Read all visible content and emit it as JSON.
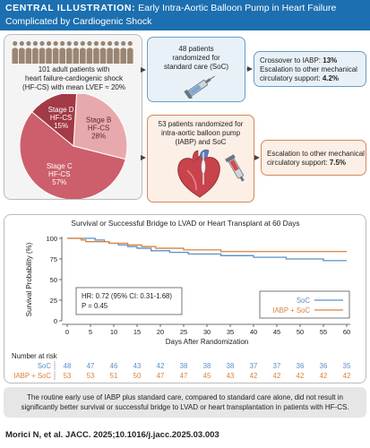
{
  "header": {
    "label": "CENTRAL ILLUSTRATION:",
    "title_line1": "Early Intra-Aortic Balloon Pump in Heart Failure",
    "title_line2": "Complicated by Cardiogenic Shock"
  },
  "population": {
    "line1": "101 adult patients with",
    "line2": "heart failure-cardiogenic shock",
    "line3": "(HF-CS) with mean LVEF ≈ 20%",
    "icon_count": 18
  },
  "pie": {
    "slices": [
      {
        "name": "Stage B",
        "sub": "HF-CS",
        "pct_label": "28%",
        "value": 28,
        "color": "#e8a9ad"
      },
      {
        "name": "Stage C",
        "sub": "HF-CS",
        "pct_label": "57%",
        "value": 57,
        "color": "#cc5f6b"
      },
      {
        "name": "Stage D",
        "sub": "HF-CS",
        "pct_label": "15%",
        "value": 15,
        "color": "#a23a47"
      }
    ]
  },
  "soc_arm": {
    "line1": "48 patients",
    "line2": "randomized for",
    "line3": "standard care (SoC)"
  },
  "soc_outcome": {
    "line1_prefix": "Crossover to IABP: ",
    "line1_value": "13%",
    "line2_prefix": "Escalation to other mechanical",
    "line3_prefix": "circulatory support: ",
    "line3_value": "4.2%"
  },
  "iabp_arm": {
    "line1": "53 patients randomized for",
    "line2": "intra-aortic balloon pump",
    "line3": "(IABP) and SoC"
  },
  "iabp_outcome": {
    "line1": "Escalation to other mechanical",
    "line2_prefix": "circulatory support: ",
    "line2_value": "7.5%"
  },
  "chart_data": {
    "type": "line",
    "title": "Survival or Successful Bridge to LVAD or Heart Transplant at 60 Days",
    "xlabel": "Days After Randomization",
    "ylabel": "Survival Probability (%)",
    "xlim": [
      0,
      60
    ],
    "ylim": [
      0,
      100
    ],
    "x_ticks": [
      0,
      5,
      10,
      15,
      20,
      25,
      30,
      35,
      40,
      45,
      50,
      55,
      60
    ],
    "y_ticks": [
      0,
      25,
      50,
      75,
      100
    ],
    "grid": false,
    "legend_position": "bottom-right",
    "series": [
      {
        "name": "SoC",
        "color": "#5b8fc7",
        "steps": [
          [
            0,
            100
          ],
          [
            6,
            98
          ],
          [
            8,
            96
          ],
          [
            9,
            94
          ],
          [
            11,
            92
          ],
          [
            13,
            90
          ],
          [
            15,
            88
          ],
          [
            18,
            85
          ],
          [
            22,
            83
          ],
          [
            26,
            81
          ],
          [
            33,
            79
          ],
          [
            40,
            77
          ],
          [
            47,
            75
          ],
          [
            55,
            73
          ],
          [
            60,
            73
          ]
        ]
      },
      {
        "name": "IABP + SoC",
        "color": "#d9823b",
        "steps": [
          [
            0,
            100
          ],
          [
            3,
            98
          ],
          [
            4,
            96
          ],
          [
            9,
            94
          ],
          [
            13,
            92
          ],
          [
            16,
            90
          ],
          [
            19,
            88
          ],
          [
            25,
            86
          ],
          [
            33,
            84
          ],
          [
            60,
            84
          ]
        ]
      }
    ],
    "annotation": {
      "line1": "HR: 0.72 (95% CI: 0.31-1.68)",
      "line2": "P = 0.45"
    },
    "risk_table": {
      "title": "Number at risk",
      "rows": [
        {
          "label": "SoC",
          "color": "#5b8fc7",
          "values": [
            48,
            47,
            46,
            43,
            42,
            38,
            38,
            38,
            37,
            37,
            36,
            36,
            35
          ]
        },
        {
          "label": "IABP + SoC",
          "color": "#d9823b",
          "values": [
            53,
            53,
            51,
            50,
            47,
            47,
            45,
            43,
            42,
            42,
            42,
            42,
            42
          ]
        }
      ]
    }
  },
  "footer": {
    "line1": "The routine early use of IABP plus standard care, compared to standard care alone, did not result in",
    "line2": "significantly better survival or successful bridge to LVAD or heart transplantation in patients with HF-CS."
  },
  "citation": "Morici N, et al. JACC. 2025;10.1016/j.jacc.2025.03.003"
}
